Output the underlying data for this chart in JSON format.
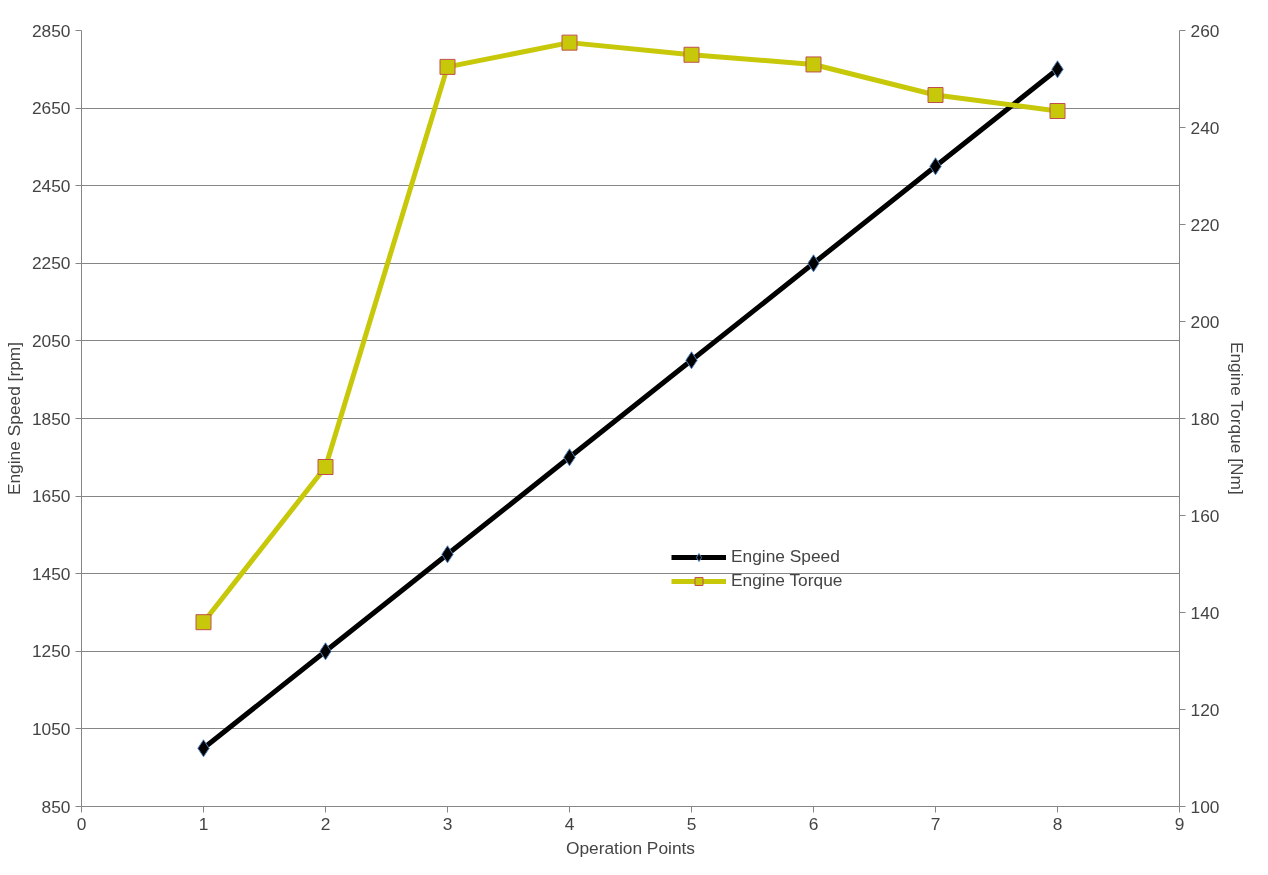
{
  "chart_data": {
    "type": "line",
    "xlabel": "Operation Points",
    "ylabel": "Engine Speed [rpm]",
    "y2label": "Engine Torque [Nm]",
    "x": [
      1,
      2,
      3,
      4,
      5,
      6,
      7,
      8
    ],
    "series": [
      {
        "name": "Engine Speed",
        "color": "#000000",
        "marker": "diamond",
        "values": [
          1000,
          1250,
          1500,
          1750,
          2000,
          2250,
          2500,
          2750
        ]
      },
      {
        "name": "Engine Torque",
        "color": "#c8c80a",
        "marker": "square",
        "axis": "y2",
        "values": [
          138,
          170,
          252.5,
          257.5,
          255,
          253,
          246.7,
          243.4
        ]
      }
    ],
    "xlim": [
      0,
      9
    ],
    "xticks": [
      0,
      1,
      2,
      3,
      4,
      5,
      6,
      7,
      8,
      9
    ],
    "ylim": [
      850,
      2850
    ],
    "yticks": [
      850,
      1050,
      1250,
      1450,
      1650,
      1850,
      2050,
      2250,
      2450,
      2650,
      2850
    ],
    "y2lim": [
      100,
      260
    ],
    "y2ticks": [
      100,
      120,
      140,
      160,
      180,
      200,
      220,
      240,
      260
    ],
    "grid": "y",
    "legend": "center",
    "line_style": "solid"
  }
}
